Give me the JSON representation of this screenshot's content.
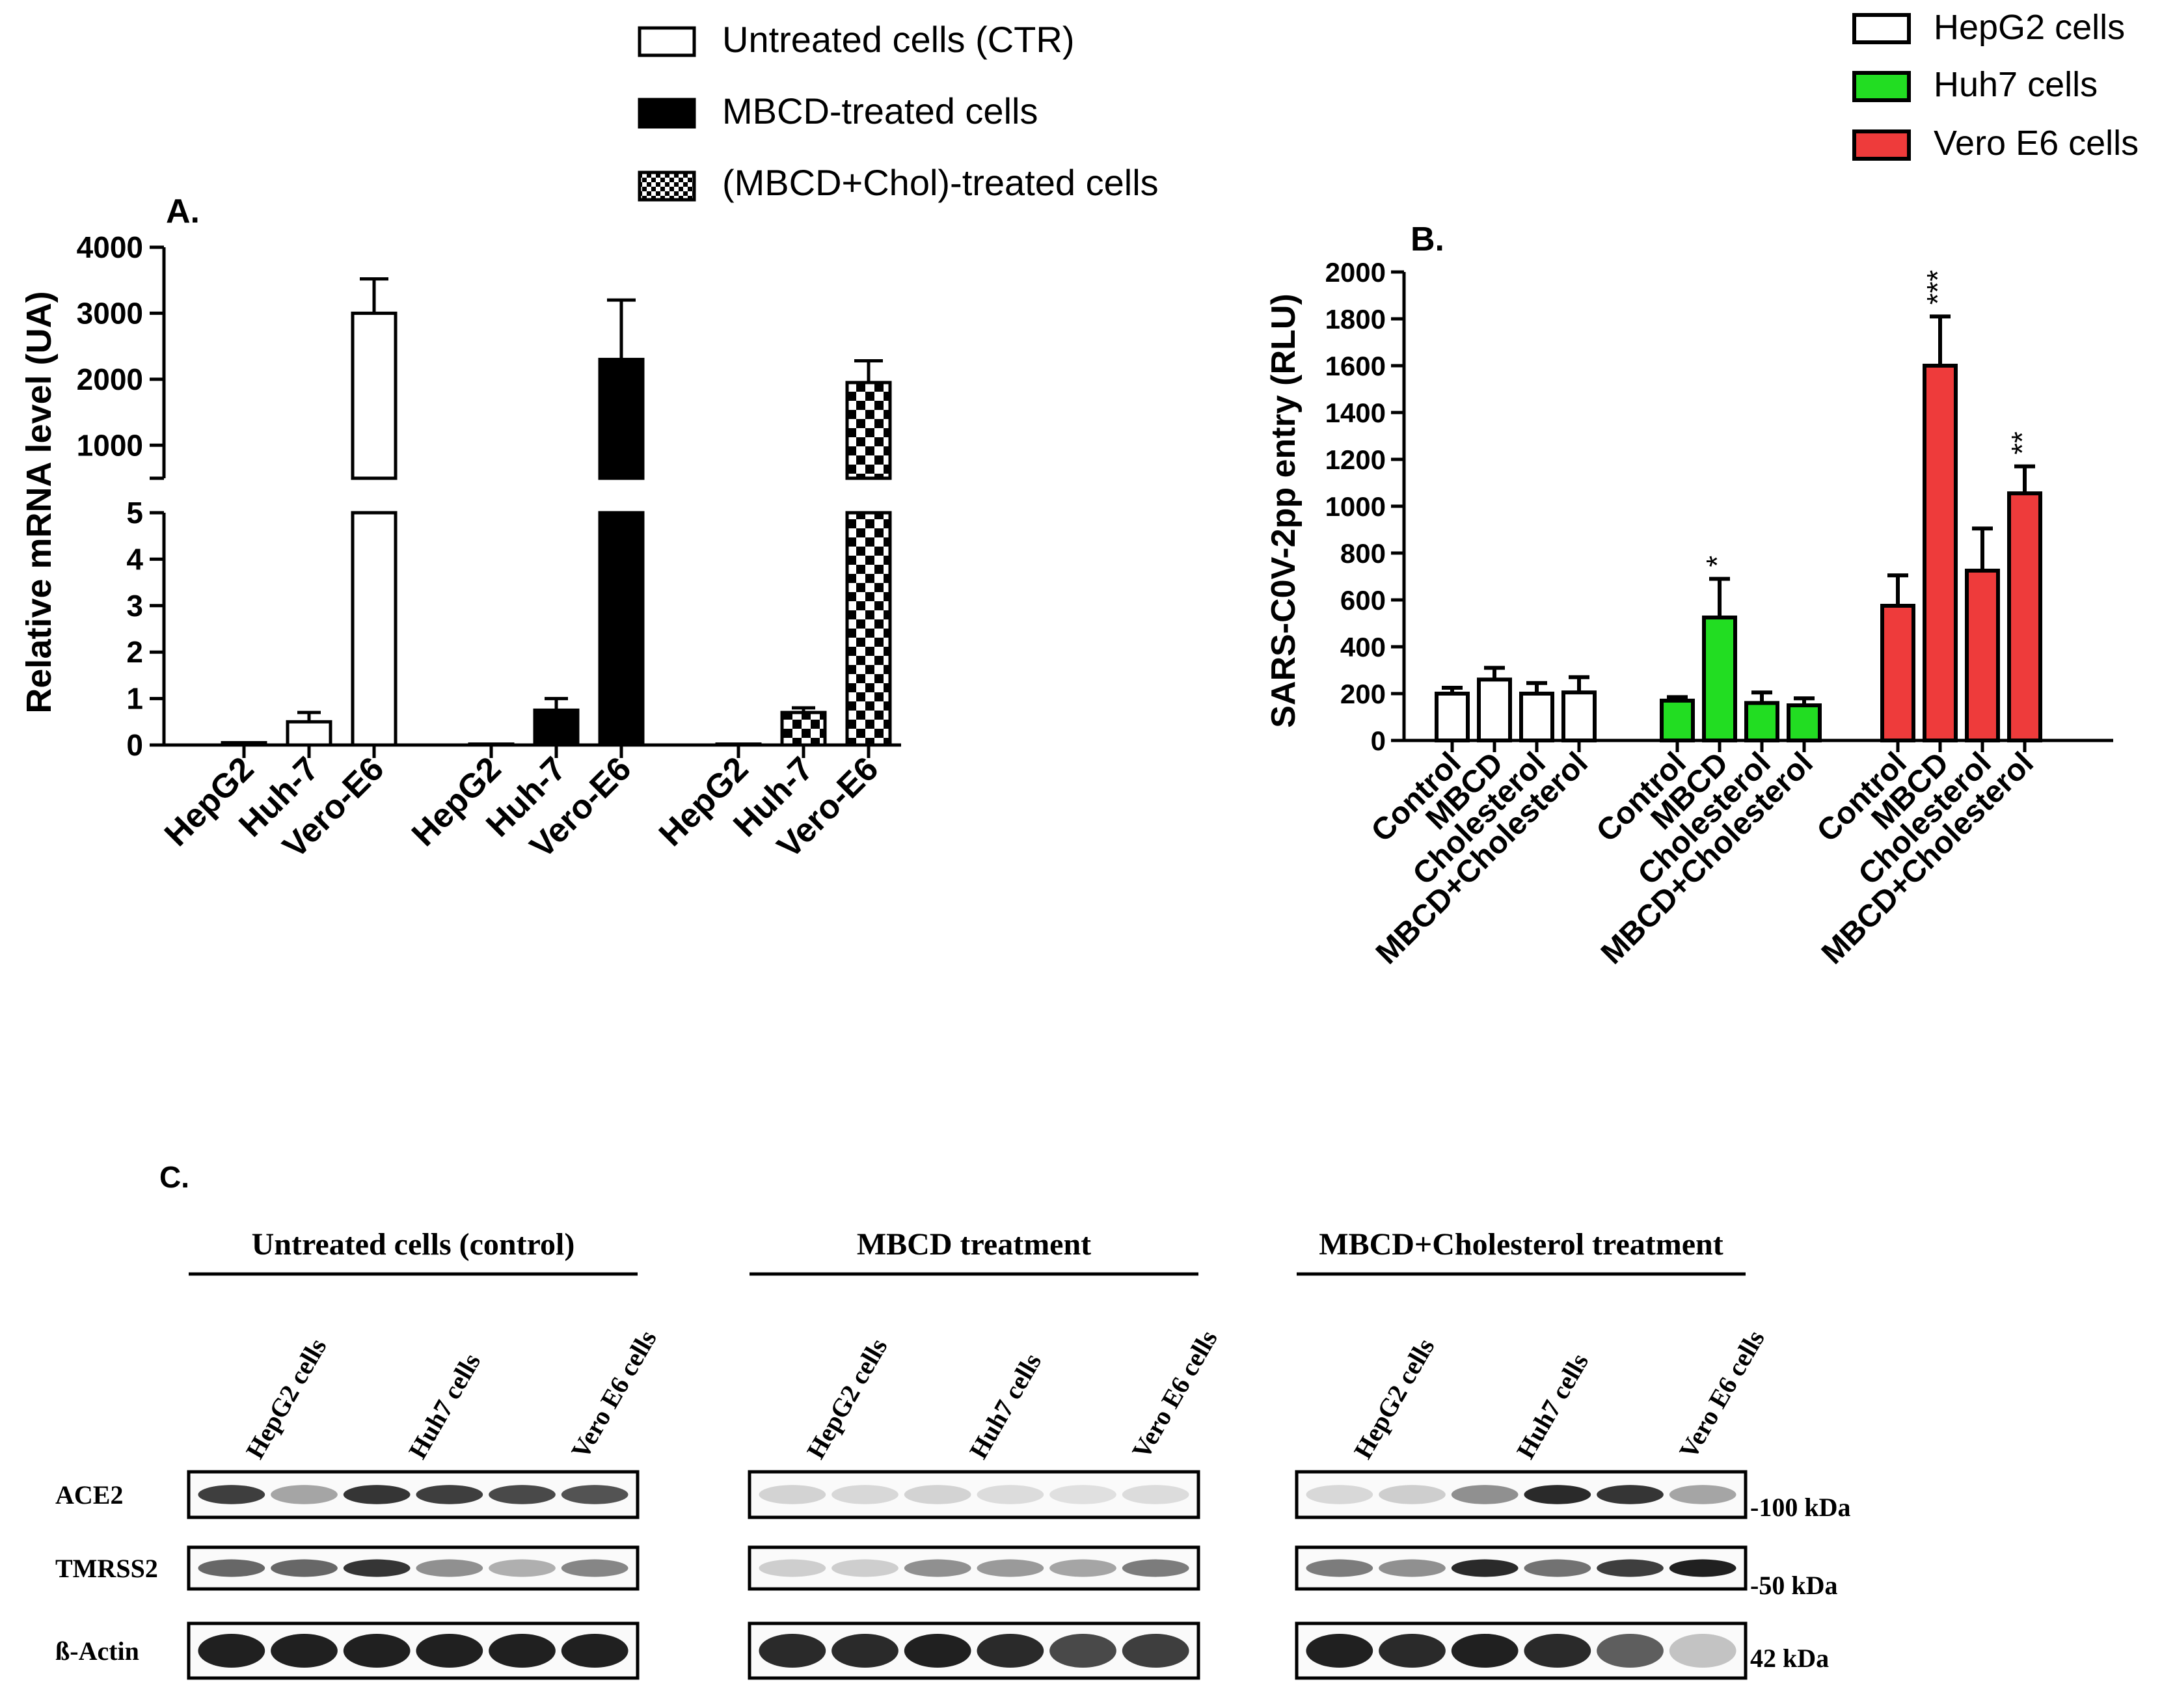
{
  "legend_a": {
    "items": [
      {
        "label": "Untreated cells (CTR)",
        "pattern": "open"
      },
      {
        "label": "MBCD-treated cells",
        "pattern": "solid"
      },
      {
        "label": "(MBCD+Chol)-treated cells",
        "pattern": "checker"
      }
    ]
  },
  "legend_b": {
    "items": [
      {
        "label": "HepG2 cells",
        "color": "#ffffff"
      },
      {
        "label": "Huh7 cells",
        "color": "#22dd22"
      },
      {
        "label": "Vero E6 cells",
        "color": "#ee3b3b"
      }
    ]
  },
  "chart_data": [
    {
      "panel": "A.",
      "type": "bar",
      "ylabel": "Relative mRNA level  (UA)",
      "y_axis_segments": [
        {
          "range": [
            0,
            5
          ],
          "ticks": [
            "0",
            "1",
            "2",
            "3",
            "4",
            "5"
          ]
        },
        {
          "range": [
            500,
            4000
          ],
          "ticks": [
            "1000",
            "2000",
            "3000",
            "4000"
          ]
        }
      ],
      "groups": [
        {
          "pattern": "open",
          "categories": [
            "HepG2",
            "Huh-7",
            "Vero-E6"
          ],
          "values": [
            0.05,
            0.5,
            3000
          ],
          "errors": [
            0,
            0.2,
            520
          ]
        },
        {
          "pattern": "solid",
          "categories": [
            "HepG2",
            "Huh-7",
            "Vero-E6"
          ],
          "values": [
            0.02,
            0.75,
            2300
          ],
          "errors": [
            0,
            0.25,
            900
          ]
        },
        {
          "pattern": "checker",
          "categories": [
            "HepG2",
            "Huh-7",
            "Vero-E6"
          ],
          "values": [
            0.02,
            0.7,
            1950
          ],
          "errors": [
            0,
            0.1,
            330
          ]
        }
      ]
    },
    {
      "panel": "B.",
      "type": "bar",
      "ylabel": "SARS-C0V-2pp entry (RLU)",
      "ylim": [
        0,
        2000
      ],
      "yticks": [
        "0",
        "200",
        "400",
        "600",
        "800",
        "1000",
        "1200",
        "1400",
        "1600",
        "1800",
        "2000"
      ],
      "groups": [
        {
          "series": "HepG2 cells",
          "color": "#ffffff",
          "categories": [
            "Control",
            "MBCD",
            "Cholesterol",
            "MBCD+Cholesterol"
          ],
          "values": [
            200,
            260,
            200,
            205
          ],
          "errors": [
            25,
            50,
            45,
            65
          ],
          "significance": [
            "",
            "",
            "",
            ""
          ]
        },
        {
          "series": "Huh7 cells",
          "color": "#22dd22",
          "categories": [
            "Control",
            "MBCD",
            "Cholesterol",
            "MBCD+Cholesterol"
          ],
          "values": [
            170,
            525,
            160,
            150
          ],
          "errors": [
            15,
            165,
            45,
            30
          ],
          "significance": [
            "",
            "*",
            "",
            ""
          ]
        },
        {
          "series": "Vero E6 cells",
          "color": "#ee3b3b",
          "categories": [
            "Control",
            "MBCD",
            "Cholesterol",
            "MBCD+Cholesterol"
          ],
          "values": [
            575,
            1600,
            725,
            1055
          ],
          "errors": [
            130,
            210,
            180,
            115
          ],
          "significance": [
            "",
            "***",
            "",
            "**"
          ]
        }
      ]
    }
  ],
  "blot": {
    "panel": "C.",
    "groups": [
      {
        "title": "Untreated cells (control)",
        "lanes": [
          "HepG2 cells",
          "Huh7 cells",
          "Vero E6 cells"
        ],
        "rows": [
          {
            "band_intensity": [
              0.85,
              0.35,
              0.9,
              0.85,
              0.8,
              0.75
            ]
          },
          {
            "band_intensity": [
              0.65,
              0.65,
              0.9,
              0.45,
              0.3,
              0.5
            ]
          },
          {
            "band_intensity": [
              1,
              1,
              1,
              1,
              1,
              1
            ]
          }
        ]
      },
      {
        "title": "MBCD treatment",
        "lanes": [
          "HepG2 cells",
          "Huh7 cells",
          "Vero E6 cells"
        ],
        "rows": [
          {
            "band_intensity": [
              0.12,
              0.1,
              0.12,
              0.08,
              0.06,
              0.08
            ]
          },
          {
            "band_intensity": [
              0.15,
              0.15,
              0.45,
              0.4,
              0.35,
              0.55
            ]
          },
          {
            "band_intensity": [
              0.95,
              0.95,
              1,
              0.95,
              0.8,
              0.85
            ]
          }
        ]
      },
      {
        "title": "MBCD+Cholesterol treatment",
        "lanes": [
          "HepG2 cells",
          "Huh7 cells",
          "Vero E6 cells"
        ],
        "rows": [
          {
            "band_intensity": [
              0.1,
              0.15,
              0.45,
              0.95,
              0.9,
              0.35
            ]
          },
          {
            "band_intensity": [
              0.55,
              0.45,
              0.95,
              0.6,
              0.85,
              1
            ]
          },
          {
            "band_intensity": [
              1,
              0.95,
              1,
              0.95,
              0.7,
              0.2
            ]
          }
        ]
      }
    ],
    "row_labels": [
      "ACE2",
      "TMRSS2",
      "ß-Actin"
    ],
    "markers": [
      "-100 kDa",
      "-50 kDa",
      "42 kDa"
    ]
  }
}
